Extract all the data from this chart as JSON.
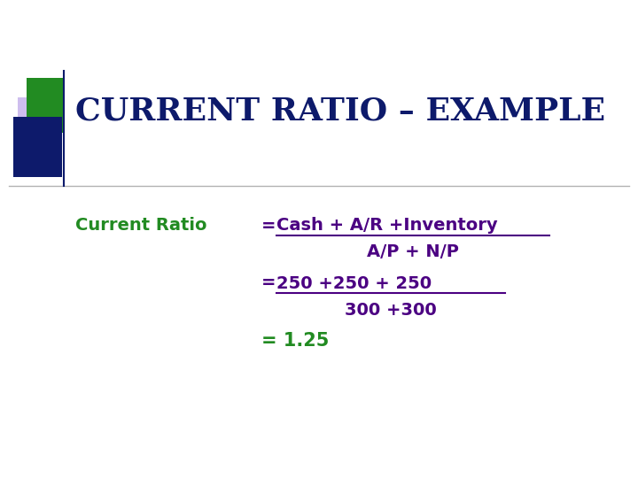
{
  "title": "CURRENT RATIO – EXAMPLE",
  "title_color": "#0d1a6b",
  "title_fontsize": 26,
  "title_font": "serif",
  "bg_color": "#ffffff",
  "label_text": "Current Ratio",
  "label_color": "#228B22",
  "label_fontsize": 14,
  "line1_num": "Cash + A/R +Inventory",
  "line1_denom": "A/P + N/P",
  "line2_num": "250 +250 + 250",
  "line2_denom": "300 +300",
  "line3": "= 1.25",
  "line3_color": "#228B22",
  "purple": "#4b0082",
  "fontsize_body": 14
}
